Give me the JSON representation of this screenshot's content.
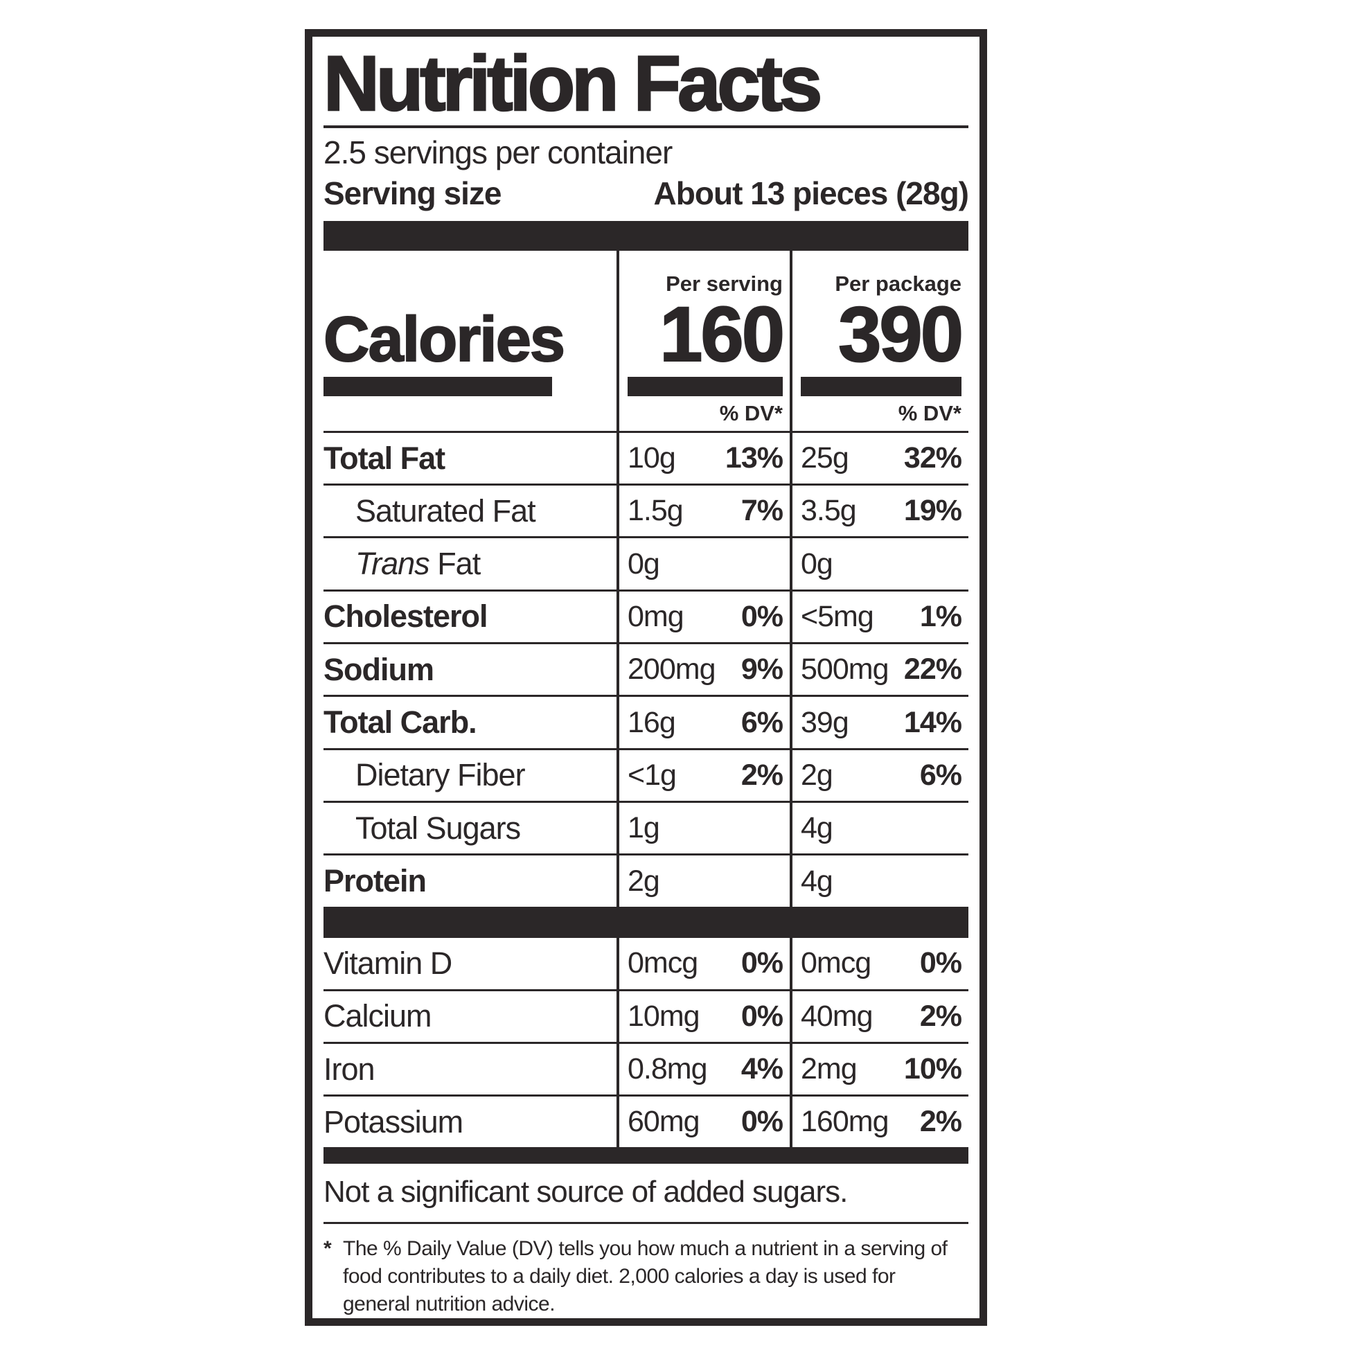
{
  "label": {
    "title": "Nutrition Facts",
    "servings_per_container": "2.5 servings per container",
    "serving_size": {
      "label": "Serving size",
      "value": "About 13 pieces (28g)"
    },
    "calories": {
      "word": "Calories",
      "per_serving": {
        "header": "Per serving",
        "value": "160"
      },
      "per_package": {
        "header": "Per package",
        "value": "390"
      },
      "dv_header": "% DV*"
    },
    "nutrients": [
      {
        "name": "Total Fat",
        "serving_amount": "10g",
        "serving_dv": "13%",
        "package_amount": "25g",
        "package_dv": "32%"
      },
      {
        "name": "Saturated Fat",
        "serving_amount": "1.5g",
        "serving_dv": "7%",
        "package_amount": "3.5g",
        "package_dv": "19%"
      },
      {
        "name_italic": "Trans",
        "name_rest": " Fat",
        "serving_amount": "0g",
        "serving_dv": "",
        "package_amount": "0g",
        "package_dv": ""
      },
      {
        "name": "Cholesterol",
        "serving_amount": "0mg",
        "serving_dv": "0%",
        "package_amount": "<5mg",
        "package_dv": "1%"
      },
      {
        "name": "Sodium",
        "serving_amount": "200mg",
        "serving_dv": "9%",
        "package_amount": "500mg",
        "package_dv": "22%"
      },
      {
        "name": "Total Carb.",
        "serving_amount": "16g",
        "serving_dv": "6%",
        "package_amount": "39g",
        "package_dv": "14%"
      },
      {
        "name": "Dietary Fiber",
        "serving_amount": "<1g",
        "serving_dv": "2%",
        "package_amount": "2g",
        "package_dv": "6%"
      },
      {
        "name": "Total Sugars",
        "serving_amount": "1g",
        "serving_dv": "",
        "package_amount": "4g",
        "package_dv": ""
      },
      {
        "name": "Protein",
        "serving_amount": "2g",
        "serving_dv": "",
        "package_amount": "4g",
        "package_dv": ""
      }
    ],
    "vitamins": [
      {
        "name": "Vitamin D",
        "serving_amount": "0mcg",
        "serving_dv": "0%",
        "package_amount": "0mcg",
        "package_dv": "0%"
      },
      {
        "name": "Calcium",
        "serving_amount": "10mg",
        "serving_dv": "0%",
        "package_amount": "40mg",
        "package_dv": "2%"
      },
      {
        "name": "Iron",
        "serving_amount": "0.8mg",
        "serving_dv": "4%",
        "package_amount": "2mg",
        "package_dv": "10%"
      },
      {
        "name": "Potassium",
        "serving_amount": "60mg",
        "serving_dv": "0%",
        "package_amount": "160mg",
        "package_dv": "2%"
      }
    ],
    "note": "Not a significant source of added sugars.",
    "footnote": {
      "marker": "*",
      "text": "The % Daily Value (DV) tells you how much a nutrient in a serving of food contributes to a daily diet. 2,000 calories a day is used for general nutrition advice."
    },
    "colors": {
      "ink": "#2b2728",
      "background": "#ffffff"
    }
  }
}
